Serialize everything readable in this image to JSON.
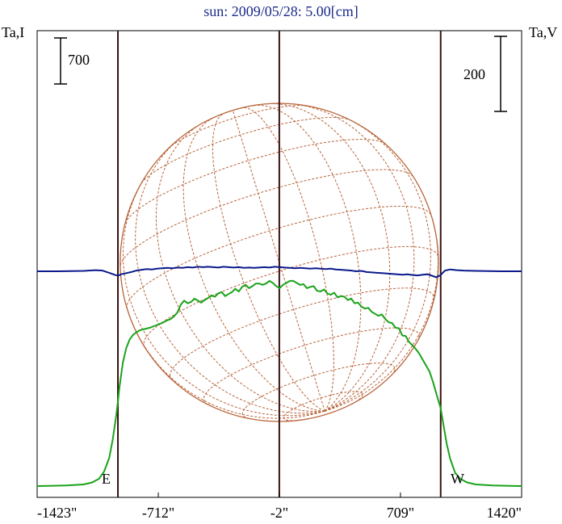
{
  "chart_data": {
    "type": "line",
    "title": "sun: 2009/05/28: 5.00[cm]",
    "left_axis_label": "Ta,I",
    "right_axis_label": "Ta,V",
    "scale_bar_left": "700",
    "scale_bar_right": "200",
    "east_label": "E",
    "west_label": "W",
    "x_tick_labels": [
      "-1423\"",
      "-712\"",
      "-2\"",
      "709\"",
      "1420\""
    ],
    "x_ticks_arcsec": [
      -1423,
      -712,
      -2,
      709,
      1420
    ],
    "xlim": [
      -1423,
      1420
    ],
    "x_unit": "arcsec",
    "solar_limbs_arcsec": [
      -949,
      -2,
      945
    ],
    "colors": {
      "stokes_i": "#1aa31a",
      "stokes_v": "#0a1a8c",
      "limb_lines": "#3a1010",
      "sun_disk": "#b8643a",
      "title": "#1a2a8a"
    },
    "series": [
      {
        "key": "stokes_i",
        "x": [
          -1423,
          -1350,
          -1250,
          -1150,
          -1100,
          -1060,
          -1030,
          -1000,
          -980,
          -960,
          -949,
          -940,
          -920,
          -900,
          -880,
          -860,
          -840,
          -820,
          -790,
          -760,
          -720,
          -690,
          -660,
          -640,
          -620,
          -600,
          -580,
          -560,
          -540,
          -520,
          -500,
          -480,
          -460,
          -440,
          -420,
          -400,
          -380,
          -360,
          -340,
          -320,
          -300,
          -280,
          -260,
          -240,
          -220,
          -200,
          -180,
          -160,
          -140,
          -120,
          -100,
          -80,
          -60,
          -40,
          -20,
          0,
          20,
          40,
          60,
          80,
          100,
          120,
          140,
          160,
          180,
          200,
          220,
          240,
          260,
          280,
          300,
          320,
          340,
          360,
          380,
          400,
          420,
          440,
          460,
          480,
          500,
          520,
          540,
          560,
          580,
          600,
          620,
          640,
          660,
          680,
          700,
          720,
          740,
          760,
          780,
          800,
          820,
          840,
          860,
          880,
          900,
          920,
          945,
          960,
          980,
          1000,
          1030,
          1060,
          1100,
          1150,
          1250,
          1350,
          1420
        ],
        "values": [
          0,
          2,
          8,
          25,
          55,
          110,
          220,
          430,
          700,
          1050,
          1280,
          1500,
          1880,
          2100,
          2230,
          2300,
          2340,
          2370,
          2390,
          2410,
          2450,
          2480,
          2520,
          2540,
          2580,
          2640,
          2760,
          2820,
          2780,
          2800,
          2850,
          2820,
          2790,
          2830,
          2860,
          2900,
          2880,
          2930,
          2950,
          2890,
          2920,
          2950,
          3000,
          2960,
          3030,
          3060,
          3010,
          3040,
          3080,
          3080,
          3060,
          3080,
          3120,
          3090,
          3040,
          3010,
          3060,
          3090,
          3120,
          3120,
          3090,
          3060,
          3070,
          3010,
          3030,
          3040,
          2970,
          2960,
          2990,
          2930,
          2910,
          2940,
          2870,
          2890,
          2880,
          2830,
          2850,
          2780,
          2790,
          2730,
          2700,
          2710,
          2650,
          2620,
          2590,
          2610,
          2540,
          2490,
          2480,
          2410,
          2400,
          2290,
          2280,
          2190,
          2140,
          2080,
          2010,
          1920,
          1830,
          1740,
          1580,
          1400,
          1180,
          950,
          650,
          420,
          200,
          110,
          55,
          25,
          8,
          2,
          0
        ]
      },
      {
        "key": "stokes_v",
        "x": [
          -1423,
          -1300,
          -1150,
          -1080,
          -1040,
          -1000,
          -970,
          -949,
          -930,
          -900,
          -870,
          -840,
          -810,
          -780,
          -750,
          -720,
          -690,
          -660,
          -630,
          -600,
          -570,
          -540,
          -510,
          -480,
          -450,
          -420,
          -390,
          -360,
          -330,
          -300,
          -270,
          -240,
          -210,
          -180,
          -150,
          -120,
          -90,
          -60,
          -30,
          0,
          30,
          60,
          90,
          120,
          150,
          180,
          210,
          240,
          270,
          300,
          330,
          360,
          390,
          420,
          450,
          480,
          510,
          540,
          570,
          600,
          630,
          660,
          690,
          720,
          750,
          780,
          810,
          840,
          870,
          900,
          920,
          945,
          970,
          1000,
          1040,
          1080,
          1150,
          1300,
          1420
        ],
        "values": [
          0,
          0,
          1,
          3,
          2,
          -4,
          -9,
          -12,
          -8,
          -5,
          -2,
          2,
          4,
          6,
          5,
          7,
          8,
          9,
          8,
          10,
          9,
          11,
          10,
          12,
          11,
          12,
          11,
          10,
          12,
          11,
          10,
          11,
          9,
          10,
          9,
          10,
          11,
          10,
          12,
          11,
          10,
          9,
          8,
          9,
          8,
          7,
          8,
          7,
          6,
          7,
          5,
          4,
          3,
          2,
          0,
          1,
          -2,
          -3,
          -4,
          -5,
          -6,
          -7,
          -8,
          -9,
          -8,
          -10,
          -11,
          -9,
          -8,
          -13,
          -16,
          -10,
          2,
          5,
          3,
          2,
          1,
          0,
          0
        ]
      }
    ],
    "grid": false,
    "legend": "none"
  }
}
